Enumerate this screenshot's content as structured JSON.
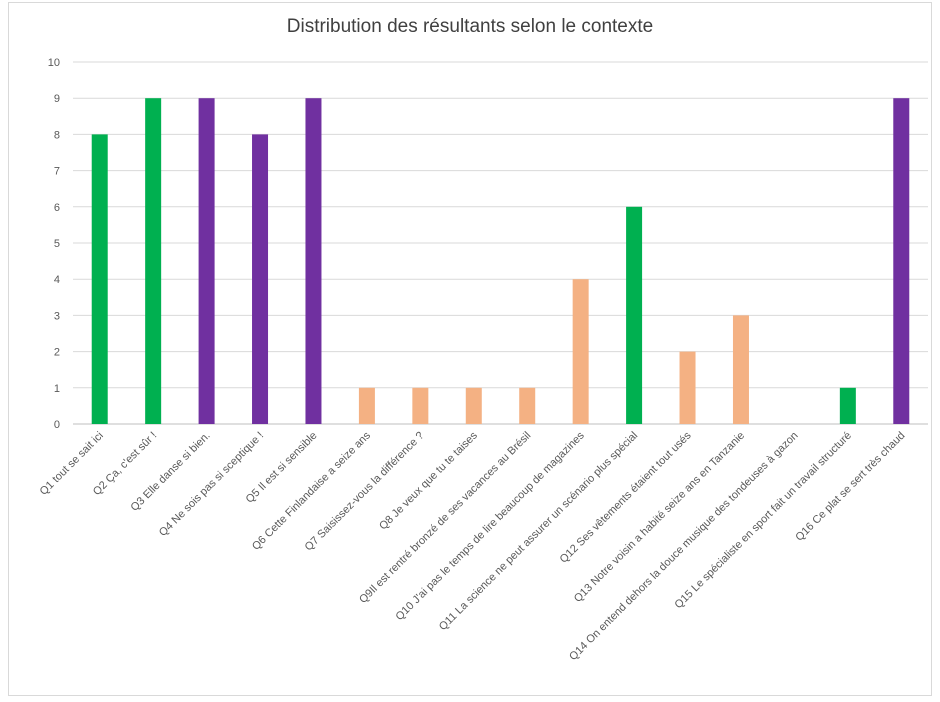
{
  "chart_data": {
    "type": "bar",
    "title": "Distribution des résultants selon le contexte",
    "xlabel": "",
    "ylabel": "",
    "ylim": [
      0,
      10
    ],
    "yticks": [
      0,
      1,
      2,
      3,
      4,
      5,
      6,
      7,
      8,
      9,
      10
    ],
    "grid": true,
    "legend": "none",
    "categories": [
      "Q1 tout se sait ici",
      "Q2 Ça, c'est sûr !",
      "Q3 Elle danse si bien.",
      "Q4 Ne sois pas si sceptique !",
      "Q5 Il est si sensible",
      "Q6 Cette Finlandaise a seize ans",
      "Q7 Saisissez-vous la différence ?",
      "Q8 Je veux que tu te taises",
      "Q9Il est rentré bronzé de ses vacances au Brésil",
      "Q10 J'ai pas le temps de lire beaucoup de magazines",
      "Q11 La science ne peut assurer un scénario plus spécial",
      "Q12 Ses vêtements étaient tout usés",
      "Q13 Notre voisin a habité seize ans en Tanzanie",
      "Q14 On entend dehors la douce musique des tondeuses à gazon",
      "Q15 Le spécialiste en sport fait un travail structuré",
      "Q16 Ce plat se sert très chaud"
    ],
    "values": [
      8,
      9,
      9,
      8,
      9,
      1,
      1,
      1,
      1,
      4,
      6,
      2,
      3,
      0,
      1,
      9
    ],
    "bar_colors": [
      "#00b050",
      "#00b050",
      "#7030a0",
      "#7030a0",
      "#7030a0",
      "#f4b183",
      "#f4b183",
      "#f4b183",
      "#f4b183",
      "#f4b183",
      "#00b050",
      "#f4b183",
      "#f4b183",
      "#f4b183",
      "#00b050",
      "#7030a0"
    ]
  },
  "colors": {
    "grid": "#d9d9d9",
    "axis": "#bfbfbf",
    "text": "#595959"
  }
}
